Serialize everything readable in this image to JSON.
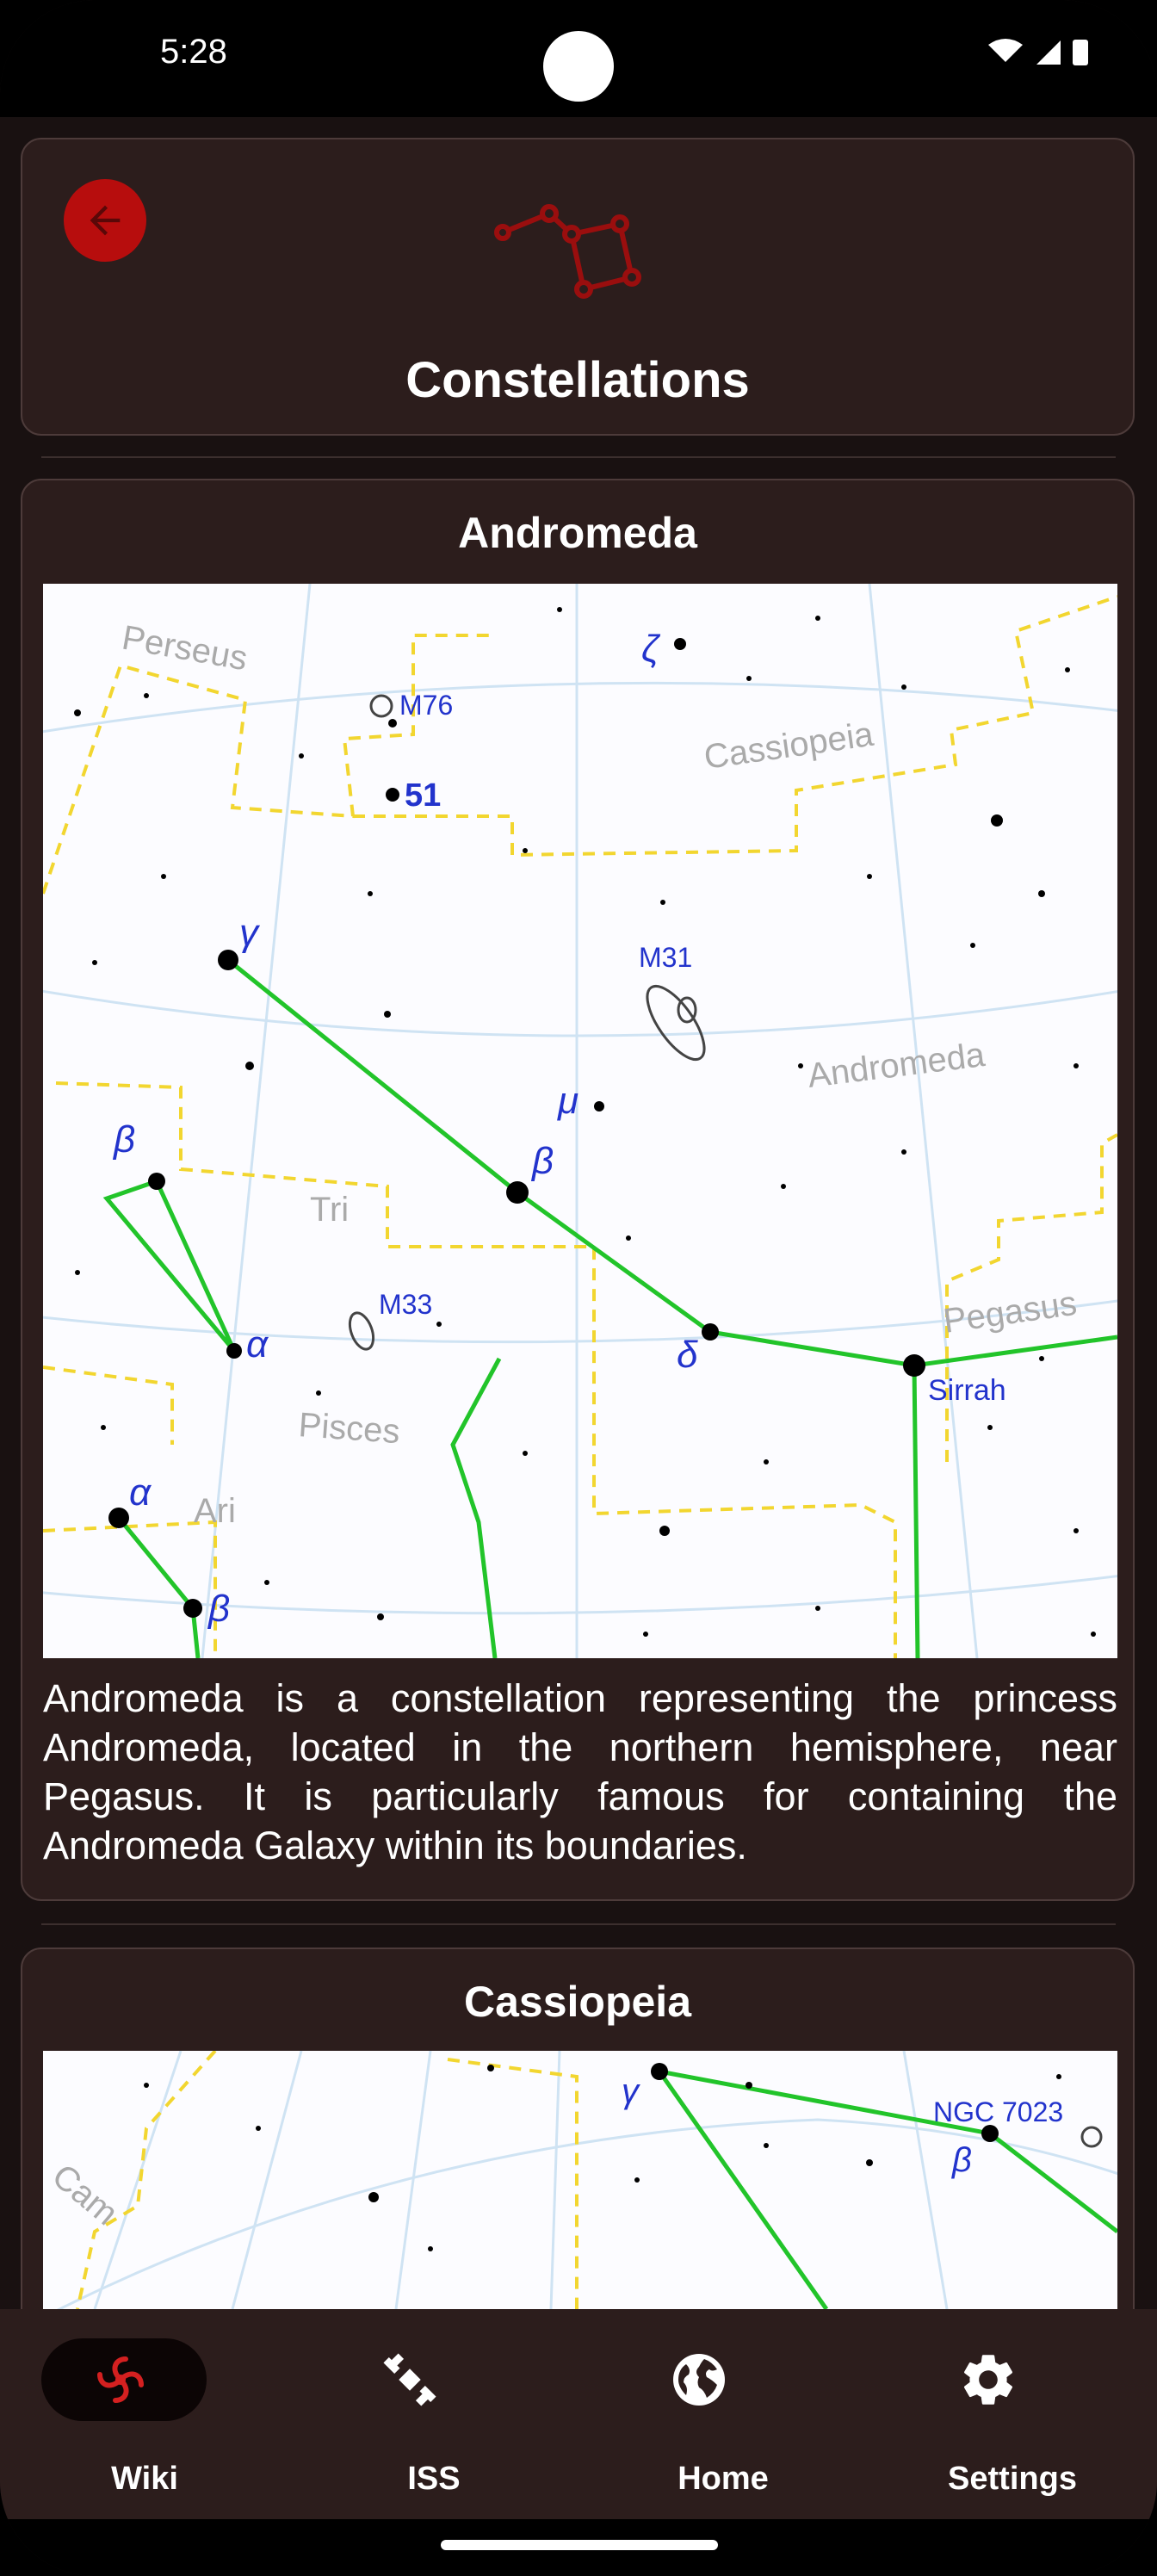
{
  "status_bar": {
    "time": "5:28"
  },
  "header": {
    "title": "Constellations",
    "back_icon": "arrow-left-icon",
    "logo_icon": "constellation-icon"
  },
  "constellations": [
    {
      "name": "Andromeda",
      "description": "Andromeda is a constellation representing the princess Andromeda, located in the northern hemisphere, near Pegasus. It is particularly famous for containing the Andromeda Galaxy within its boundaries.",
      "chart_labels": {
        "perseus": "Perseus",
        "cassiopeia": "Cassiopeia",
        "andromeda": "Andromeda",
        "tri": "Tri",
        "pisces": "Pisces",
        "ari": "Ari",
        "pegasus": "Pegasus",
        "sirrah": "Sirrah",
        "m76": "M76",
        "m51": "51",
        "m31": "M31",
        "m33": "M33",
        "zeta": "ζ",
        "gamma": "γ",
        "mu": "μ",
        "beta": "β",
        "delta": "δ",
        "alpha": "α"
      }
    },
    {
      "name": "Cassiopeia",
      "chart_labels": {
        "cam": "Cam",
        "gamma": "γ",
        "beta": "β",
        "ngc": "NGC 7023"
      }
    }
  ],
  "nav": [
    {
      "label": "Wiki",
      "icon": "galaxy-icon",
      "active": true
    },
    {
      "label": "ISS",
      "icon": "satellite-icon",
      "active": false
    },
    {
      "label": "Home",
      "icon": "globe-icon",
      "active": false
    },
    {
      "label": "Settings",
      "icon": "gear-icon",
      "active": false
    }
  ],
  "colors": {
    "accent": "#b70d0d",
    "card": "#2c1d1c",
    "background": "#191111",
    "constellation_line": "#22c42a",
    "boundary": "#f2d630",
    "star_label": "#2233cc"
  }
}
